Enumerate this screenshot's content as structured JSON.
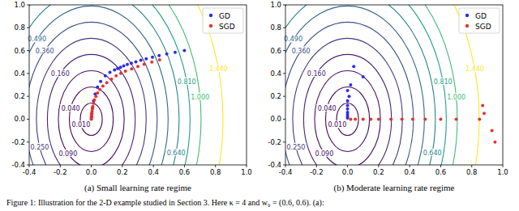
{
  "caption": "Figure 1: Illustration for the 2-D example studied in Section 3. Here κ = 4 and w₀ = (0.6, 0.6). (a):",
  "chart_data": [
    {
      "type": "scatter",
      "title": "(a) Small learning rate regime",
      "kappa": 4,
      "xlim": [
        -0.4,
        1.0
      ],
      "ylim": [
        -0.4,
        1.0
      ],
      "xticks": [
        -0.4,
        -0.2,
        {
          "value": 0,
          "label": "0.0"
        },
        0.2,
        0.4,
        0.6,
        0.8,
        {
          "value": 1,
          "label": "1.0"
        }
      ],
      "yticks": [
        -0.4,
        -0.2,
        {
          "value": 0,
          "label": "0.0"
        },
        0.2,
        0.4,
        0.6,
        0.8,
        {
          "value": 1,
          "label": "1.0"
        }
      ],
      "legend": "upper right",
      "marker": "o",
      "contour_levels": [
        {
          "value": 0.01,
          "label": "0.010"
        },
        {
          "value": 0.04,
          "label": "0.040"
        },
        {
          "value": 0.09,
          "label": "0.090"
        },
        {
          "value": 0.16,
          "label": "0.160"
        },
        {
          "value": 0.25,
          "label": "0.250"
        },
        {
          "value": 0.36,
          "label": "0.360"
        },
        {
          "value": 0.49,
          "label": "0.490"
        },
        {
          "value": 0.64,
          "label": "0.640"
        },
        {
          "value": 0.81,
          "label": "0.810"
        },
        {
          "value": 1.0,
          "label": "1.000"
        },
        {
          "value": 1.44,
          "label": "1.440"
        }
      ],
      "series": [
        {
          "name": "GD",
          "color": "#2b2bf0",
          "x": [
            0.6,
            0.54,
            0.486,
            0.437,
            0.394,
            0.354,
            0.319,
            0.287,
            0.258,
            0.232,
            0.209,
            0.188,
            0.17,
            0.15,
            0.12,
            0.09,
            0.06,
            0.04,
            0.025,
            0.015,
            0.008,
            0.004,
            0.002
          ],
          "values": [
            0.6,
            0.585,
            0.57,
            0.556,
            0.542,
            0.528,
            0.515,
            0.502,
            0.49,
            0.478,
            0.466,
            0.454,
            0.443,
            0.43,
            0.41,
            0.38,
            0.33,
            0.28,
            0.22,
            0.16,
            0.1,
            0.05,
            0.02
          ]
        },
        {
          "name": "SGD",
          "color": "#e8312f",
          "x": [
            0.44,
            0.39,
            0.34,
            0.3,
            0.26,
            0.22,
            0.19,
            0.16,
            0.13,
            0.1,
            0.075,
            0.055,
            0.04,
            0.03,
            0.02,
            0.015,
            0.01,
            0.007,
            0.005,
            0.003,
            0.002,
            0.001,
            0.0,
            0.0
          ],
          "values": [
            0.52,
            0.5,
            0.48,
            0.46,
            0.44,
            0.42,
            0.4,
            0.38,
            0.35,
            0.32,
            0.29,
            0.26,
            0.23,
            0.2,
            0.17,
            0.14,
            0.11,
            0.09,
            0.07,
            0.05,
            0.035,
            0.02,
            0.01,
            0.0
          ]
        }
      ]
    },
    {
      "type": "scatter",
      "title": "(b) Moderate learning rate regime",
      "kappa": 4,
      "xlim": [
        -0.4,
        1.0
      ],
      "ylim": [
        -0.4,
        1.0
      ],
      "xticks": [
        -0.4,
        -0.2,
        {
          "value": 0,
          "label": "0.0"
        },
        0.2,
        0.4,
        0.6,
        0.8,
        {
          "value": 1,
          "label": "1.0"
        }
      ],
      "yticks": [
        -0.4,
        -0.2,
        {
          "value": 0,
          "label": "0.0"
        },
        0.2,
        0.4,
        0.6,
        0.8,
        {
          "value": 1,
          "label": "1.0"
        }
      ],
      "legend": "upper right",
      "marker": "o",
      "contour_levels": [
        {
          "value": 0.01,
          "label": "0.010"
        },
        {
          "value": 0.04,
          "label": "0.040"
        },
        {
          "value": 0.09,
          "label": "0.090"
        },
        {
          "value": 0.16,
          "label": "0.160"
        },
        {
          "value": 0.25,
          "label": "0.250"
        },
        {
          "value": 0.36,
          "label": "0.360"
        },
        {
          "value": 0.49,
          "label": "0.490"
        },
        {
          "value": 0.64,
          "label": "0.640"
        },
        {
          "value": 0.81,
          "label": "0.810"
        },
        {
          "value": 1.0,
          "label": "1.000"
        },
        {
          "value": 1.44,
          "label": "1.440"
        }
      ],
      "series": [
        {
          "name": "GD",
          "color": "#2b2bf0",
          "x": [
            0.04,
            0.1,
            0.02,
            0.0,
            0.01,
            0.0,
            0.0,
            0.0,
            0.0,
            0.0,
            0.0,
            0.0
          ],
          "values": [
            0.46,
            0.37,
            0.3,
            0.25,
            0.2,
            0.16,
            0.12,
            0.09,
            0.06,
            0.04,
            0.02,
            0.01
          ]
        },
        {
          "name": "SGD",
          "color": "#e8312f",
          "x": [
            0.87,
            0.88,
            0.93,
            0.95,
            0.85,
            0.7,
            0.6,
            0.5,
            0.42,
            0.35,
            0.28,
            0.2,
            0.15,
            0.1,
            0.05,
            0.02
          ],
          "values": [
            0.12,
            0.05,
            -0.1,
            -0.2,
            0.0,
            0.0,
            0.0,
            0.0,
            0.0,
            0.0,
            0.0,
            0.0,
            0.0,
            0.0,
            0.0,
            0.0
          ]
        }
      ]
    }
  ]
}
